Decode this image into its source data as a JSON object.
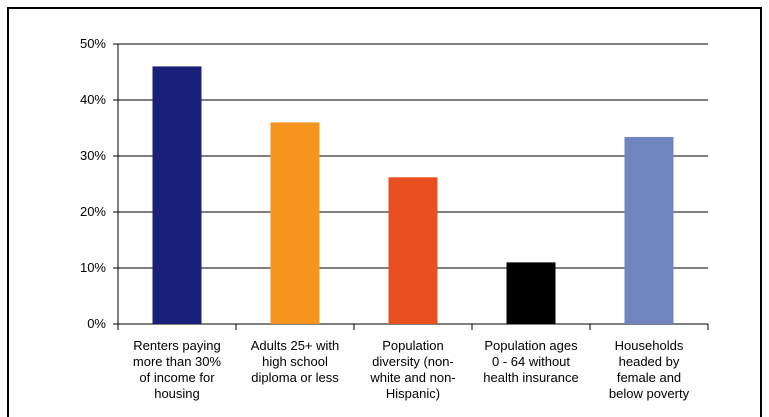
{
  "chart_data": {
    "type": "bar",
    "title": "",
    "xlabel": "",
    "ylabel": "",
    "ylim": [
      0,
      50
    ],
    "y_ticks": [
      "0%",
      "10%",
      "20%",
      "30%",
      "40%",
      "50%"
    ],
    "grid": true,
    "legend": "none",
    "categories": [
      [
        "Renters paying",
        "more than 30%",
        "of income for",
        "housing"
      ],
      [
        "Adults 25+ with",
        "high school",
        "diploma or less"
      ],
      [
        "Population",
        "diversity (non-",
        "white and non-",
        "Hispanic)"
      ],
      [
        "Population ages",
        "0 - 64 without",
        "health insurance"
      ],
      [
        "Households",
        "headed by",
        "female and",
        "below poverty"
      ]
    ],
    "values": [
      46,
      36,
      26.2,
      11,
      33.4
    ],
    "colors": [
      "#1a1f7a",
      "#f5951e",
      "#e8501f",
      "#000000",
      "#6f85c0"
    ]
  }
}
